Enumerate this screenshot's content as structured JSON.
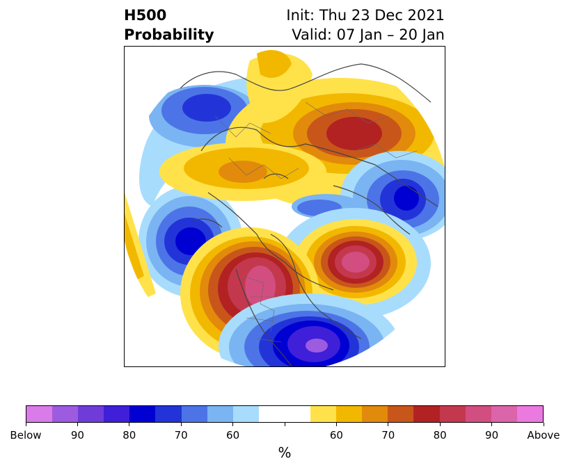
{
  "title": {
    "left_line1": "H500",
    "left_line2": "Probability",
    "right_line1": "Init: Thu 23 Dec 2021",
    "right_line2": "Valid: 07 Jan – 20 Jan"
  },
  "map": {
    "projection": "north-polar-stereographic",
    "shading": [
      {
        "region": "northern-europe",
        "category": "below",
        "level": "70-80"
      },
      {
        "region": "north-atlantic",
        "category": "below",
        "level": "80-85"
      },
      {
        "region": "siberia",
        "category": "above",
        "level": "80-85"
      },
      {
        "region": "central-asia",
        "category": "above",
        "level": "65-70"
      },
      {
        "region": "eastern-asia",
        "category": "below",
        "level": "80-85"
      },
      {
        "region": "north-pacific",
        "category": "above",
        "level": "90-95"
      },
      {
        "region": "western-north-america",
        "category": "above",
        "level": "90-95"
      },
      {
        "region": "eastern-north-america",
        "category": "below",
        "level": "90-95"
      }
    ]
  },
  "colorbar": {
    "colors": [
      "#d97be8",
      "#9d5be0",
      "#6f3cda",
      "#3f1fd8",
      "#0000d2",
      "#2234d8",
      "#4c74e6",
      "#7ab4f2",
      "#a8dcfc",
      "#ffffff",
      "#ffffff",
      "#ffe24a",
      "#f2b800",
      "#e28a0c",
      "#c8561a",
      "#b22222",
      "#c4384e",
      "#d24e80",
      "#dc64aa",
      "#ea7adf"
    ],
    "tick_labels": [
      "Below",
      "90",
      "80",
      "70",
      "60",
      "",
      "60",
      "70",
      "80",
      "90",
      "Above"
    ],
    "unit": "%"
  }
}
